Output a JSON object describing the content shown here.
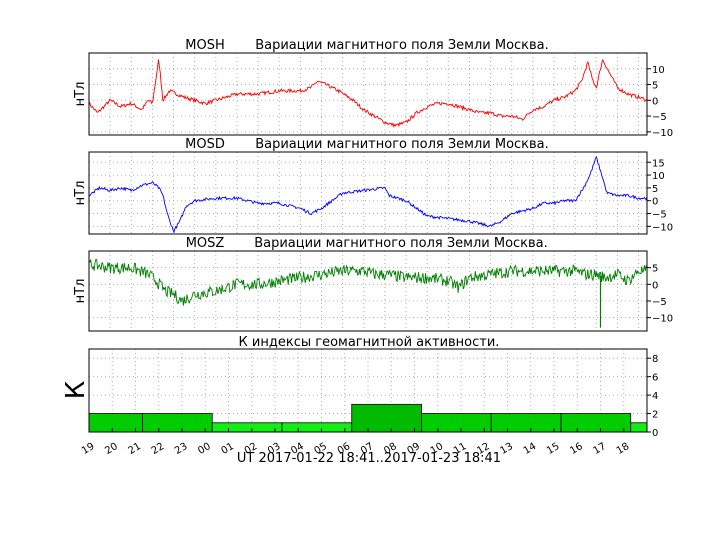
{
  "chart_data": [
    {
      "type": "line",
      "id": "mosh",
      "title_station": "MOSH",
      "title": "Вариации магнитного поля Земли Москва.",
      "ylabel": "нТл",
      "ylim": [
        -11,
        15
      ],
      "yticks": [
        10,
        5,
        0,
        -5,
        -10
      ],
      "color": "#ff0000",
      "grid": true,
      "series": [
        {
          "keypoints": [
            [
              0,
              -1
            ],
            [
              0.4,
              -4
            ],
            [
              1,
              0
            ],
            [
              1.5,
              -2
            ],
            [
              2,
              -1
            ],
            [
              2.5,
              -3
            ],
            [
              2.8,
              0
            ],
            [
              3,
              -1
            ],
            [
              3.3,
              13
            ],
            [
              3.5,
              0
            ],
            [
              3.8,
              3
            ],
            [
              4.5,
              1
            ],
            [
              5,
              0
            ],
            [
              5.5,
              -1
            ],
            [
              6,
              0
            ],
            [
              6.5,
              1
            ],
            [
              7,
              2
            ],
            [
              8,
              2
            ],
            [
              9,
              3
            ],
            [
              10,
              3
            ],
            [
              10.5,
              4
            ],
            [
              10.8,
              6
            ],
            [
              11.2,
              5
            ],
            [
              11.8,
              3
            ],
            [
              12.5,
              0
            ],
            [
              13,
              -3
            ],
            [
              13.5,
              -5
            ],
            [
              14,
              -7
            ],
            [
              14.5,
              -8
            ],
            [
              15,
              -7
            ],
            [
              15.5,
              -4
            ],
            [
              16,
              -2
            ],
            [
              16.5,
              -1
            ],
            [
              17,
              -1
            ],
            [
              17.5,
              -2
            ],
            [
              18,
              -3
            ],
            [
              18.5,
              -4
            ],
            [
              19,
              -4
            ],
            [
              19.5,
              -5
            ],
            [
              20,
              -5
            ],
            [
              20.5,
              -6
            ],
            [
              21,
              -3
            ],
            [
              21.5,
              -2
            ],
            [
              22,
              0
            ],
            [
              22.5,
              1
            ],
            [
              23,
              3
            ],
            [
              23.3,
              6
            ],
            [
              23.6,
              12
            ],
            [
              23.8,
              7
            ],
            [
              24,
              4
            ],
            [
              24.3,
              13
            ],
            [
              24.6,
              9
            ],
            [
              25,
              4
            ],
            [
              25.5,
              2
            ],
            [
              26,
              1
            ],
            [
              26.4,
              0
            ]
          ]
        }
      ]
    },
    {
      "type": "line",
      "id": "mosd",
      "title_station": "MOSD",
      "title": "Вариации магнитного поля Земли Москва.",
      "ylabel": "нТл",
      "ylim": [
        -13,
        19
      ],
      "yticks": [
        15,
        10,
        5,
        0,
        -5,
        -10
      ],
      "color": "#0000ff",
      "grid": true,
      "series": [
        {
          "keypoints": [
            [
              0,
              2
            ],
            [
              0.5,
              5
            ],
            [
              1,
              4
            ],
            [
              1.5,
              5
            ],
            [
              2,
              4
            ],
            [
              2.5,
              6
            ],
            [
              3,
              7
            ],
            [
              3.3,
              5
            ],
            [
              3.5,
              2
            ],
            [
              3.7,
              -5
            ],
            [
              4,
              -12
            ],
            [
              4.3,
              -8
            ],
            [
              4.6,
              -2
            ],
            [
              5,
              0
            ],
            [
              6,
              1
            ],
            [
              7,
              1
            ],
            [
              8,
              -1
            ],
            [
              9,
              -1
            ],
            [
              10,
              -3
            ],
            [
              10.5,
              -5
            ],
            [
              11,
              -3
            ],
            [
              11.5,
              0
            ],
            [
              12,
              3
            ],
            [
              13,
              4
            ],
            [
              14,
              5
            ],
            [
              14.2,
              2
            ],
            [
              15,
              0
            ],
            [
              15.5,
              -3
            ],
            [
              16,
              -6
            ],
            [
              17,
              -7
            ],
            [
              18,
              -8
            ],
            [
              19,
              -10
            ],
            [
              19.5,
              -8
            ],
            [
              20,
              -5
            ],
            [
              21,
              -3
            ],
            [
              21.5,
              -1
            ],
            [
              22,
              -1
            ],
            [
              22.5,
              0
            ],
            [
              23,
              0
            ],
            [
              23.4,
              5
            ],
            [
              23.7,
              10
            ],
            [
              24,
              17
            ],
            [
              24.3,
              9
            ],
            [
              24.5,
              3
            ],
            [
              25,
              2
            ],
            [
              25.5,
              2
            ],
            [
              26,
              1
            ],
            [
              26.4,
              1
            ]
          ]
        }
      ]
    },
    {
      "type": "line",
      "id": "mosz",
      "title_station": "MOSZ",
      "title": "Вариации магнитного поля Земли Москва.",
      "ylabel": "нТл",
      "ylim": [
        -14,
        10
      ],
      "yticks": [
        5,
        0,
        -5,
        -10
      ],
      "color": "#008000",
      "grid": true,
      "series": [
        {
          "keypoints": [
            [
              0,
              6
            ],
            [
              1,
              5
            ],
            [
              2,
              5
            ],
            [
              2.8,
              3
            ],
            [
              3.2,
              1
            ],
            [
              3.6,
              -2
            ],
            [
              4,
              -3
            ],
            [
              4.4,
              -5
            ],
            [
              5,
              -3
            ],
            [
              6,
              -2
            ],
            [
              7,
              0
            ],
            [
              8,
              0
            ],
            [
              9,
              1
            ],
            [
              10,
              2
            ],
            [
              11,
              3
            ],
            [
              12,
              4
            ],
            [
              13,
              4
            ],
            [
              13.5,
              3
            ],
            [
              14,
              3
            ],
            [
              15,
              2
            ],
            [
              16,
              2
            ],
            [
              17,
              1
            ],
            [
              17.5,
              -1
            ],
            [
              18,
              2
            ],
            [
              19,
              3
            ],
            [
              20,
              4
            ],
            [
              21,
              4
            ],
            [
              22,
              4
            ],
            [
              23,
              4
            ],
            [
              23.5,
              3
            ],
            [
              24,
              3
            ],
            [
              24.4,
              2
            ],
            [
              25,
              3
            ],
            [
              25.5,
              1
            ],
            [
              26,
              4
            ],
            [
              26.4,
              4
            ]
          ]
        }
      ],
      "spike": {
        "x": 24.2,
        "y": -13
      }
    },
    {
      "type": "bar",
      "id": "k_index",
      "title": "К индексы геомагнитной активности.",
      "ylabel": "К",
      "ylim": [
        0,
        9
      ],
      "yticks": [
        8,
        6,
        4,
        2,
        0
      ],
      "xlabel": "UT 2017-01-22 18:41..2017-01-23 18:41",
      "xticks": [
        "19",
        "20",
        "21",
        "22",
        "23",
        "00",
        "01",
        "02",
        "03",
        "04",
        "05",
        "06",
        "07",
        "08",
        "09",
        "10",
        "11",
        "12",
        "13",
        "14",
        "15",
        "16",
        "17",
        "18"
      ],
      "grid": true,
      "colors": {
        "1": "#11ee11",
        "2": "#00cc00",
        "3": "#00bb00"
      },
      "bars": [
        {
          "start": 0,
          "end": 2.3,
          "k": 2
        },
        {
          "start": 2.3,
          "end": 5.3,
          "k": 2
        },
        {
          "start": 5.3,
          "end": 8.3,
          "k": 1
        },
        {
          "start": 8.3,
          "end": 11.3,
          "k": 1
        },
        {
          "start": 11.3,
          "end": 14.3,
          "k": 3
        },
        {
          "start": 14.3,
          "end": 17.3,
          "k": 2
        },
        {
          "start": 17.3,
          "end": 20.3,
          "k": 2
        },
        {
          "start": 20.3,
          "end": 23.3,
          "k": 2
        },
        {
          "start": 23.3,
          "end": 24,
          "k": 1
        }
      ]
    }
  ]
}
